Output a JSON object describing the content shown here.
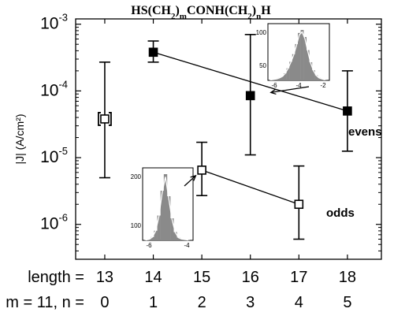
{
  "chart_data": {
    "type": "scatter",
    "title": "HS(CH2)mCONH(CH2)nH",
    "title_parts": [
      {
        "t": "HS(CH",
        "sub": false
      },
      {
        "t": "2",
        "sub": true
      },
      {
        "t": ")",
        "sub": false
      },
      {
        "t": "m",
        "sub": true
      },
      {
        "t": "CONH(CH",
        "sub": false
      },
      {
        "t": "2",
        "sub": true
      },
      {
        "t": ")",
        "sub": false
      },
      {
        "t": "n",
        "sub": true
      },
      {
        "t": "H",
        "sub": false
      }
    ],
    "ylabel": "|J| (A/cm²)",
    "yscale": "log",
    "ylim": [
      3e-07,
      0.0012
    ],
    "xlim": [
      12.4,
      18.7
    ],
    "y_ticks": [
      {
        "value": 0.001,
        "base": "10",
        "exp": "-3"
      },
      {
        "value": 0.0001,
        "base": "10",
        "exp": "-4"
      },
      {
        "value": 1e-05,
        "base": "10",
        "exp": "-5"
      },
      {
        "value": 1e-06,
        "base": "10",
        "exp": "-6"
      }
    ],
    "x_rows": [
      {
        "label": "length =",
        "values": [
          "13",
          "14",
          "15",
          "16",
          "17",
          "18"
        ]
      },
      {
        "label": "m = 11, n =",
        "values": [
          "0",
          "1",
          "2",
          "3",
          "4",
          "5"
        ]
      }
    ],
    "x_positions": [
      13,
      14,
      15,
      16,
      17,
      18
    ],
    "series": [
      {
        "name": "evens",
        "marker": "filled-square",
        "fit": true,
        "points": [
          {
            "x": 14,
            "y": 0.00038,
            "lo": 0.00027,
            "hi": 0.00056
          },
          {
            "x": 16,
            "y": 8.5e-05,
            "lo": 1.1e-05,
            "hi": 0.0007
          },
          {
            "x": 18,
            "y": 5e-05,
            "lo": 1.25e-05,
            "hi": 0.0002
          }
        ]
      },
      {
        "name": "odds",
        "marker": "open-square",
        "fit": true,
        "points": [
          {
            "x": 15,
            "y": 6.5e-06,
            "lo": 2.7e-06,
            "hi": 1.7e-05
          },
          {
            "x": 17,
            "y": 2e-06,
            "lo": 6e-07,
            "hi": 7.5e-06
          }
        ]
      },
      {
        "name": "",
        "marker": "bracketed-open-square",
        "fit": false,
        "points": [
          {
            "x": 13,
            "y": 3.8e-05,
            "lo": 5e-06,
            "hi": 0.00027
          }
        ]
      }
    ],
    "insets": [
      {
        "name": "histogram-16",
        "arrow_to": {
          "x": 16,
          "y": 8.5e-05
        },
        "x_ticks": [
          "-6",
          "-4",
          "-2"
        ],
        "y_ticks": [
          "100",
          "50"
        ],
        "bars": [
          1,
          2,
          3,
          5,
          8,
          14,
          24,
          37,
          52,
          72,
          94,
          100,
          86,
          60,
          36,
          20,
          10,
          5,
          3,
          1
        ],
        "color": "#8a8a8a"
      },
      {
        "name": "histogram-15",
        "arrow_to": {
          "x": 15,
          "y": 6.5e-06
        },
        "x_ticks": [
          "-6",
          "-4"
        ],
        "y_ticks": [
          "200",
          "100"
        ],
        "bars": [
          1,
          4,
          12,
          35,
          90,
          180,
          240,
          160,
          80,
          30,
          10,
          5,
          3,
          1
        ],
        "color": "#8a8a8a"
      }
    ],
    "colors": {
      "axis": "#000000",
      "bar": "#8a8a8a",
      "fit": "#ffffff",
      "marker": "#000000"
    }
  }
}
